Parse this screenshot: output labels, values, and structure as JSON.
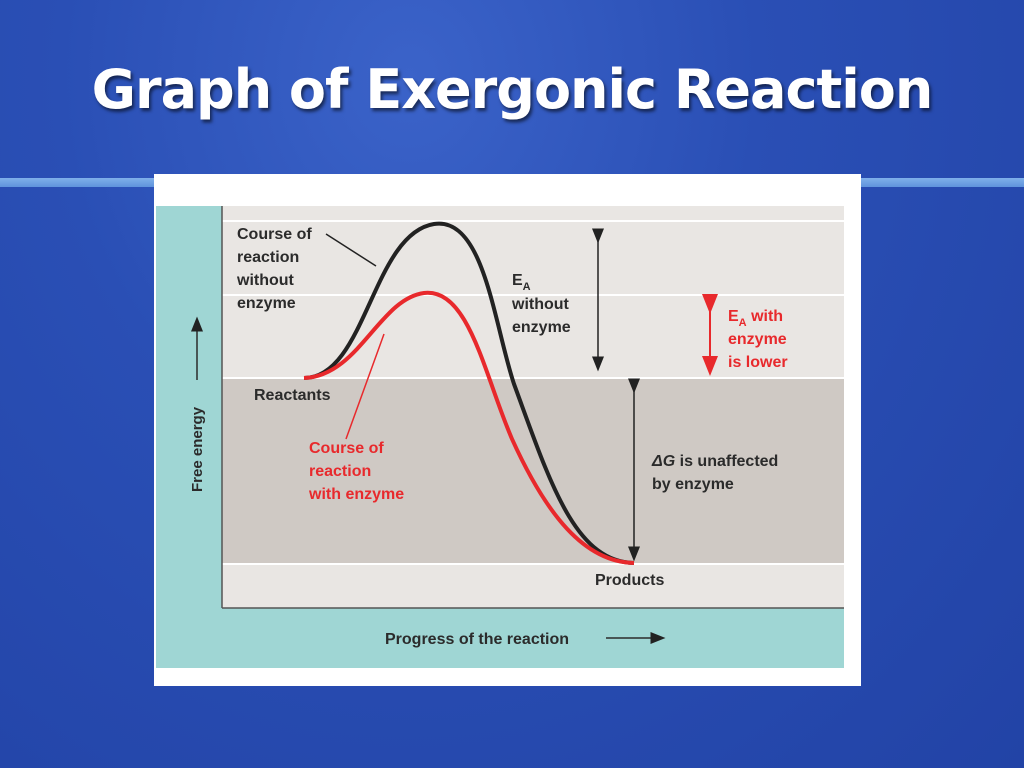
{
  "slide": {
    "title": "Graph of Exergonic Reaction"
  },
  "diagram": {
    "axis_y_label": "Free energy",
    "axis_x_label": "Progress of the reaction",
    "label_no_enzyme": [
      "Course of",
      "reaction",
      "without",
      "enzyme"
    ],
    "label_with_enzyme": [
      "Course of",
      "reaction",
      "with enzyme"
    ],
    "label_reactants": "Reactants",
    "label_products": "Products",
    "ea_without": {
      "main": "E",
      "sub": "A",
      "line2": "without",
      "line3": "enzyme"
    },
    "ea_with": {
      "main": "E",
      "sub": "A",
      "suffix": " with",
      "line2": "enzyme",
      "line3": "is lower"
    },
    "delta_g": {
      "symbol": "ΔG",
      "line1_rest": " is unaffected",
      "line2": "by enzyme"
    }
  },
  "colors": {
    "background": "#2a4fb5",
    "plot_light": "#e9e6e3",
    "plot_dark": "#cfc9c4",
    "axis_panel": "#9fd6d4",
    "curve_without": "#222222",
    "curve_with": "#e8292c",
    "text_dark": "#2b2b2b",
    "text_red": "#e8292c"
  }
}
